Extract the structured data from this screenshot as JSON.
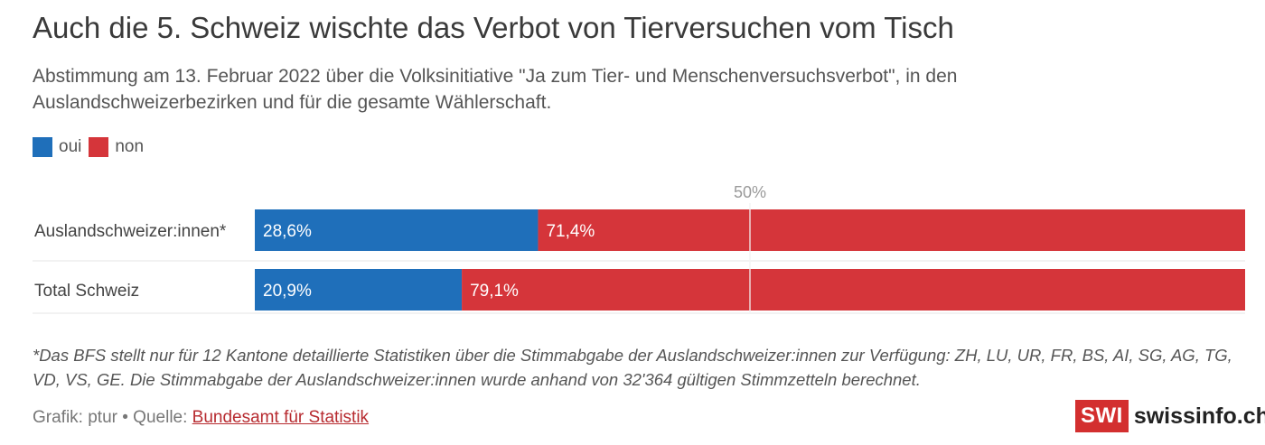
{
  "header": {
    "title": "Auch die 5. Schweiz wischte das Verbot von Tierversuchen vom Tisch",
    "subtitle": "Abstimmung am 13. Februar 2022 über die Volksinitiative \"Ja zum Tier- und Menschenversuchsverbot\", in den Auslandschweizerbezirken und für die gesamte Wählerschaft."
  },
  "legend": [
    {
      "label": "oui",
      "color": "#1f6fba"
    },
    {
      "label": "non",
      "color": "#d5353a"
    }
  ],
  "chart_data": {
    "type": "bar",
    "orientation": "horizontal",
    "stacked": true,
    "categories": [
      "Auslandschweizer:innen*",
      "Total Schweiz"
    ],
    "series": [
      {
        "name": "oui",
        "values": [
          28.6,
          20.9
        ],
        "labels": [
          "28,6%",
          "20,9%"
        ],
        "color": "#1f6fba"
      },
      {
        "name": "non",
        "values": [
          71.4,
          79.1
        ],
        "labels": [
          "71,4%",
          "79,1%"
        ],
        "color": "#d5353a"
      }
    ],
    "xlim": [
      0,
      100
    ],
    "reference_line": {
      "value": 50,
      "label": "50%"
    }
  },
  "footnote": "*Das BFS stellt nur für 12 Kantone detaillierte Statistiken über die Stimmabgabe der Auslandschweizer:innen zur Verfügung: ZH, LU, UR, FR, BS, AI, SG, AG, TG, VD, VS, GE. Die Stimmabgabe der Auslandschweizer:innen wurde anhand von 32'364 gültigen Stimmzetteln berechnet.",
  "source": {
    "prefix": "Grafik: ptur • Quelle: ",
    "link_text": "Bundesamt für Statistik"
  },
  "logo": {
    "badge": "SWI",
    "text": "swissinfo.ch"
  }
}
